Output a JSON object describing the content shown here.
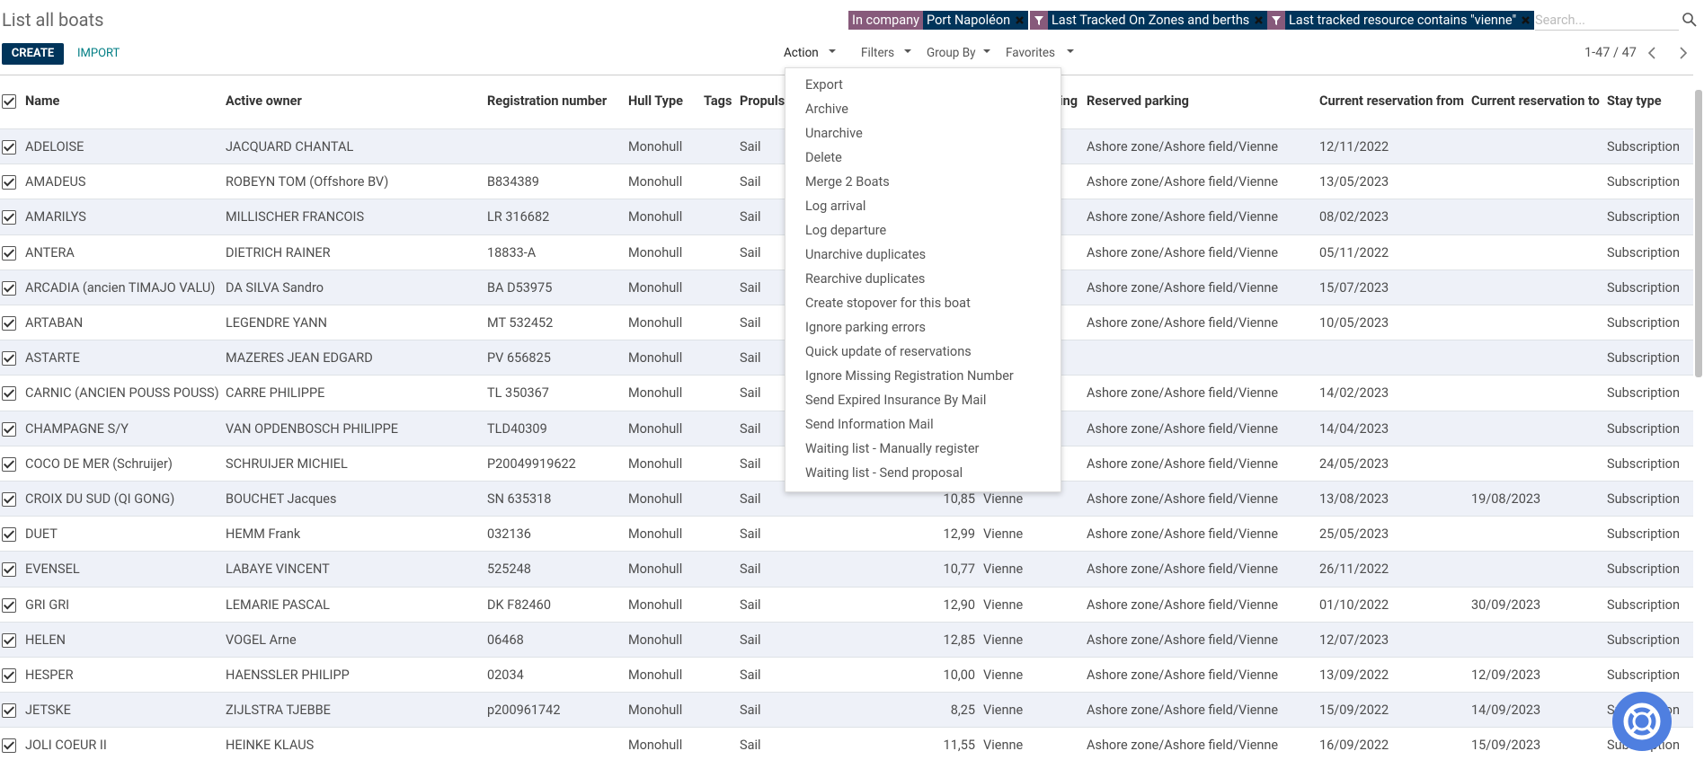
{
  "header": {
    "title": "List all boats",
    "create": "CREATE",
    "import": "IMPORT",
    "facets": [
      {
        "label": "In company",
        "value": "Port Napoléon"
      },
      {
        "value": "Last Tracked On Zones and berths"
      },
      {
        "value": "Last tracked resource contains \"vienne\""
      }
    ],
    "search_placeholder": "Search...",
    "controls": [
      "Action",
      "Filters",
      "Group By",
      "Favorites"
    ],
    "pager": "1-47 / 47"
  },
  "action_menu": [
    "Export",
    "Archive",
    "Unarchive",
    "Delete",
    "Merge 2 Boats",
    "Log arrival",
    "Log departure",
    "Unarchive duplicates",
    "Rearchive duplicates",
    "Create stopover for this boat",
    "Ignore parking errors",
    "Quick update of reservations",
    "Ignore Missing Registration Number",
    "Send Expired Insurance By Mail",
    "Send Information Mail",
    "Waiting list - Manually register",
    "Waiting list - Send proposal"
  ],
  "table": {
    "columns": [
      "Name",
      "Active owner",
      "Registration number",
      "Hull Type",
      "Tags",
      "Propuls",
      null,
      "ing",
      "Reserved parking",
      "Current reservation from",
      "Current reservation to",
      "Stay type"
    ],
    "rows": [
      [
        "ADELOISE",
        "JACQUARD CHANTAL",
        null,
        "Monohull",
        null,
        "Sail",
        null,
        null,
        "Ashore zone/Ashore field/Vienne",
        "12/11/2022",
        null,
        "Subscription"
      ],
      [
        "AMADEUS",
        "ROBEYN TOM (Offshore BV)",
        "B834389",
        "Monohull",
        null,
        "Sail",
        null,
        null,
        "Ashore zone/Ashore field/Vienne",
        "13/05/2023",
        null,
        "Subscription"
      ],
      [
        "AMARILYS",
        "MILLISCHER FRANCOIS",
        "LR 316682",
        "Monohull",
        null,
        "Sail",
        null,
        null,
        "Ashore zone/Ashore field/Vienne",
        "08/02/2023",
        null,
        "Subscription"
      ],
      [
        "ANTERA",
        "DIETRICH RAINER",
        "18833-A",
        "Monohull",
        null,
        "Sail",
        null,
        null,
        "Ashore zone/Ashore field/Vienne",
        "05/11/2022",
        null,
        "Subscription"
      ],
      [
        "ARCADIA (ancien TIMAJO VALU)",
        "DA SILVA Sandro",
        "BA D53975",
        "Monohull",
        null,
        "Sail",
        null,
        null,
        "Ashore zone/Ashore field/Vienne",
        "15/07/2023",
        null,
        "Subscription"
      ],
      [
        "ARTABAN",
        "LEGENDRE YANN",
        "MT 532452",
        "Monohull",
        null,
        "Sail",
        null,
        null,
        "Ashore zone/Ashore field/Vienne",
        "10/05/2023",
        null,
        "Subscription"
      ],
      [
        "ASTARTE",
        "MAZERES JEAN EDGARD",
        "PV 656825",
        "Monohull",
        null,
        "Sail",
        null,
        null,
        null,
        null,
        null,
        "Subscription"
      ],
      [
        "CARNIC (ANCIEN POUSS POUSS)",
        "CARRE PHILIPPE",
        "TL 350367",
        "Monohull",
        null,
        "Sail",
        null,
        null,
        "Ashore zone/Ashore field/Vienne",
        "14/02/2023",
        null,
        "Subscription"
      ],
      [
        "CHAMPAGNE S/Y",
        "VAN OPDENBOSCH PHILIPPE",
        "TLD40309",
        "Monohull",
        null,
        "Sail",
        null,
        null,
        "Ashore zone/Ashore field/Vienne",
        "14/04/2023",
        null,
        "Subscription"
      ],
      [
        "COCO DE MER (Schruijer)",
        "SCHRUIJER MICHIEL",
        "P20049919622",
        "Monohull",
        null,
        "Sail",
        null,
        null,
        "Ashore zone/Ashore field/Vienne",
        "24/05/2023",
        null,
        "Subscription"
      ],
      [
        "CROIX DU SUD (QI GONG)",
        "BOUCHET Jacques",
        "SN 635318",
        "Monohull",
        null,
        "Sail",
        "10,85",
        "Vienne",
        "Ashore zone/Ashore field/Vienne",
        "13/08/2023",
        "19/08/2023",
        "Subscription"
      ],
      [
        "DUET",
        "HEMM Frank",
        "032136",
        "Monohull",
        null,
        "Sail",
        "12,99",
        "Vienne",
        "Ashore zone/Ashore field/Vienne",
        "25/05/2023",
        null,
        "Subscription"
      ],
      [
        "EVENSEL",
        "LABAYE VINCENT",
        "525248",
        "Monohull",
        null,
        "Sail",
        "10,77",
        "Vienne",
        "Ashore zone/Ashore field/Vienne",
        "26/11/2022",
        null,
        "Subscription"
      ],
      [
        "GRI GRI",
        "LEMARIE PASCAL",
        "DK F82460",
        "Monohull",
        null,
        "Sail",
        "12,90",
        "Vienne",
        "Ashore zone/Ashore field/Vienne",
        "01/10/2022",
        "30/09/2023",
        "Subscription"
      ],
      [
        "HELEN",
        "VOGEL Arne",
        "06468",
        "Monohull",
        null,
        "Sail",
        "12,85",
        "Vienne",
        "Ashore zone/Ashore field/Vienne",
        "12/07/2023",
        null,
        "Subscription"
      ],
      [
        "HESPER",
        "HAENSSLER PHILIPP",
        "02034",
        "Monohull",
        null,
        "Sail",
        "10,00",
        "Vienne",
        "Ashore zone/Ashore field/Vienne",
        "13/09/2022",
        "12/09/2023",
        "Subscription"
      ],
      [
        "JETSKE",
        "ZIJLSTRA TJEBBE",
        "p200961742",
        "Monohull",
        null,
        "Sail",
        "8,25",
        "Vienne",
        "Ashore zone/Ashore field/Vienne",
        "15/09/2022",
        "14/09/2023",
        "Subscription"
      ],
      [
        "JOLI COEUR II",
        "HEINKE KLAUS",
        null,
        "Monohull",
        null,
        "Sail",
        "11,55",
        "Vienne",
        "Ashore zone/Ashore field/Vienne",
        "16/09/2022",
        "15/09/2023",
        "Subscription"
      ]
    ]
  }
}
